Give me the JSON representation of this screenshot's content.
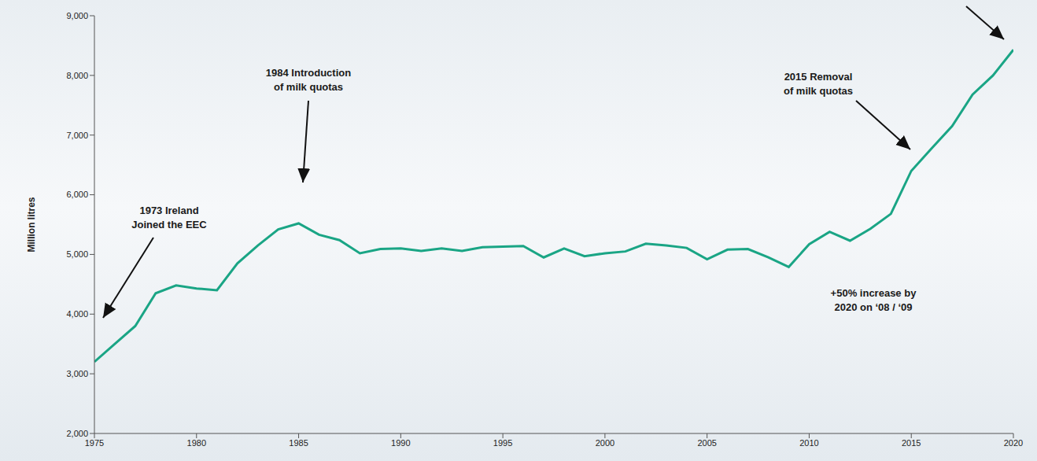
{
  "chart_data": {
    "type": "line",
    "y_label": "Million litres",
    "x": [
      1975,
      1976,
      1977,
      1978,
      1979,
      1980,
      1981,
      1982,
      1983,
      1984,
      1985,
      1986,
      1987,
      1988,
      1989,
      1990,
      1991,
      1992,
      1993,
      1994,
      1995,
      1996,
      1997,
      1998,
      1999,
      2000,
      2001,
      2002,
      2003,
      2004,
      2005,
      2006,
      2007,
      2008,
      2009,
      2010,
      2011,
      2012,
      2013,
      2014,
      2015,
      2016,
      2017,
      2018,
      2019,
      2020
    ],
    "values": [
      3200,
      3500,
      3800,
      4350,
      4480,
      4430,
      4400,
      4850,
      5150,
      5420,
      5520,
      5330,
      5240,
      5020,
      5090,
      5100,
      5060,
      5100,
      5060,
      5120,
      5130,
      5140,
      4950,
      5100,
      4970,
      5020,
      5050,
      5180,
      5150,
      5110,
      4920,
      5080,
      5090,
      4950,
      4790,
      5170,
      5380,
      5230,
      5430,
      5680,
      6400,
      6780,
      7150,
      7680,
      8000,
      8430
    ],
    "color": "#1aa585",
    "xlim": [
      1975,
      2020
    ],
    "xticks": [
      1975,
      1980,
      1985,
      1990,
      1995,
      2000,
      2005,
      2010,
      2015,
      2020
    ],
    "ylim": [
      2000,
      9000
    ],
    "yticks": [
      {
        "value": 2000,
        "label": "2,000"
      },
      {
        "value": 3000,
        "label": "3,000"
      },
      {
        "value": 4000,
        "label": "4,000"
      },
      {
        "value": 5000,
        "label": "5,000"
      },
      {
        "value": 6000,
        "label": "6,000"
      },
      {
        "value": 7000,
        "label": "7,000"
      },
      {
        "value": 8000,
        "label": "8,000"
      },
      {
        "value": 9000,
        "label": "9,000"
      }
    ],
    "grid": false,
    "annotations": [
      {
        "text": [
          "1973 Ireland",
          "Joined the EEC"
        ]
      },
      {
        "text": [
          "1984 Introduction",
          "of milk quotas"
        ]
      },
      {
        "text": [
          "2015 Removal",
          "of milk quotas"
        ]
      },
      {
        "text": [
          "+50% increase by",
          "2020 on ‘08 / ‘09"
        ]
      }
    ]
  }
}
